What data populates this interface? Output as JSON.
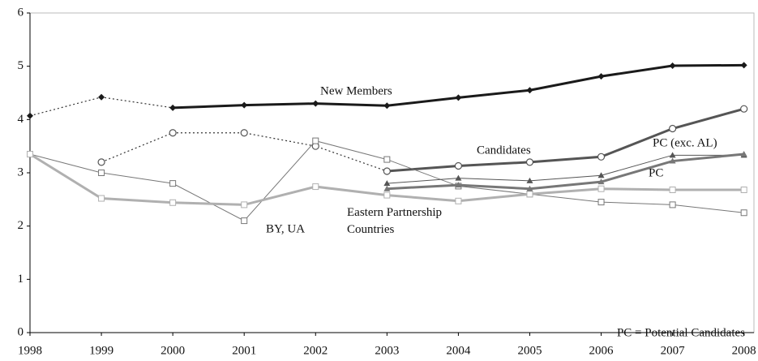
{
  "chart_data": {
    "type": "line",
    "x": [
      1998,
      1999,
      2000,
      2001,
      2002,
      2003,
      2004,
      2005,
      2006,
      2007,
      2008
    ],
    "xlim": [
      1998,
      2008.14
    ],
    "xticks": [
      1998,
      1999,
      2000,
      2001,
      2002,
      2003,
      2004,
      2005,
      2006,
      2007,
      2008
    ],
    "ylim": [
      0,
      6
    ],
    "yticks": [
      0,
      1,
      2,
      3,
      4,
      5,
      6
    ],
    "series": [
      {
        "name": "New Members",
        "color": "#1a1a1a",
        "width": 3,
        "marker": "diamond",
        "dotted_until": 2000,
        "values": [
          4.07,
          4.42,
          4.22,
          4.27,
          4.3,
          4.26,
          4.41,
          4.55,
          4.81,
          5.01,
          5.02
        ]
      },
      {
        "name": "Candidates",
        "color": "#555555",
        "width": 3,
        "marker": "circle",
        "dotted_until": 2003,
        "values": [
          null,
          3.2,
          3.75,
          3.75,
          3.5,
          3.03,
          3.13,
          3.2,
          3.3,
          3.83,
          4.2
        ]
      },
      {
        "name": "BY, UA",
        "color": "#777777",
        "width": 1,
        "marker": "square",
        "dotted_until": 1998,
        "values": [
          3.35,
          3.0,
          2.8,
          2.1,
          3.6,
          3.25,
          2.75,
          2.6,
          2.45,
          2.4,
          2.25
        ]
      },
      {
        "name": "Eastern Partnership Countries",
        "color": "#b0b0b0",
        "width": 3,
        "marker": "square",
        "dotted_until": 1998,
        "values": [
          3.35,
          2.52,
          2.44,
          2.4,
          2.74,
          2.58,
          2.47,
          2.6,
          2.7,
          2.68,
          2.68
        ]
      },
      {
        "name": "PC (exc. AL)",
        "color": "#555555",
        "width": 1,
        "marker": "triangle",
        "dotted_until": 1998,
        "values": [
          null,
          null,
          null,
          null,
          null,
          2.8,
          2.9,
          2.85,
          2.95,
          3.33,
          3.33
        ]
      },
      {
        "name": "PC",
        "color": "#777777",
        "width": 3,
        "marker": "triangle",
        "dotted_until": 1998,
        "values": [
          null,
          null,
          null,
          null,
          null,
          2.7,
          2.77,
          2.7,
          2.83,
          3.22,
          3.35
        ]
      }
    ],
    "note": "PC = Potential Candidates"
  }
}
